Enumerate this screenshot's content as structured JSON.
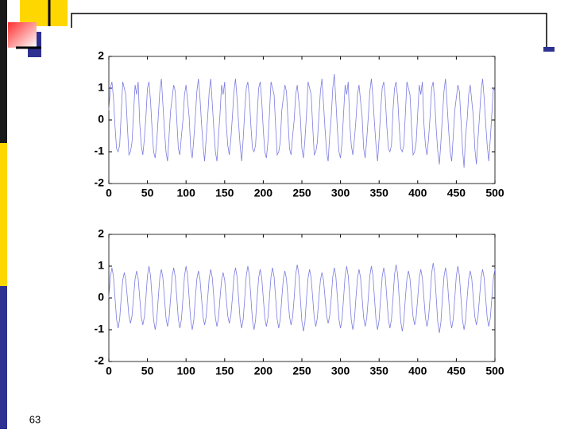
{
  "page_number": "63",
  "chart_data": [
    {
      "type": "line",
      "color": "#7c7ce0",
      "xlim": [
        0,
        500
      ],
      "ylim": [
        -2,
        2
      ],
      "xticks": [
        0,
        50,
        100,
        150,
        200,
        250,
        300,
        350,
        400,
        450,
        500
      ],
      "yticks": [
        -2,
        -1,
        0,
        1,
        2
      ],
      "x": [
        0,
        2,
        4,
        6,
        8,
        10,
        12,
        14,
        16,
        18,
        20,
        22,
        24,
        26,
        28,
        30,
        32,
        34,
        36,
        38,
        40,
        42,
        44,
        46,
        48,
        50,
        52,
        54,
        56,
        58,
        60,
        62,
        64,
        66,
        68,
        70,
        72,
        74,
        76,
        78,
        80,
        82,
        84,
        86,
        88,
        90,
        92,
        94,
        96,
        98,
        100,
        102,
        104,
        106,
        108,
        110,
        112,
        114,
        116,
        118,
        120,
        122,
        124,
        126,
        128,
        130,
        132,
        134,
        136,
        138,
        140,
        142,
        144,
        146,
        148,
        150,
        152,
        154,
        156,
        158,
        160,
        162,
        164,
        166,
        168,
        170,
        172,
        174,
        176,
        178,
        180,
        182,
        184,
        186,
        188,
        190,
        192,
        194,
        196,
        198,
        200,
        202,
        204,
        206,
        208,
        210,
        212,
        214,
        216,
        218,
        220,
        222,
        224,
        226,
        228,
        230,
        232,
        234,
        236,
        238,
        240,
        242,
        244,
        246,
        248,
        250,
        252,
        254,
        256,
        258,
        260,
        262,
        264,
        266,
        268,
        270,
        272,
        274,
        276,
        278,
        280,
        282,
        284,
        286,
        288,
        290,
        292,
        294,
        296,
        298,
        300,
        302,
        304,
        306,
        308,
        310,
        312,
        314,
        316,
        318,
        320,
        322,
        324,
        326,
        328,
        330,
        332,
        334,
        336,
        338,
        340,
        342,
        344,
        346,
        348,
        350,
        352,
        354,
        356,
        358,
        360,
        362,
        364,
        366,
        368,
        370,
        372,
        374,
        376,
        378,
        380,
        382,
        384,
        386,
        388,
        390,
        392,
        394,
        396,
        398,
        400,
        402,
        404,
        406,
        408,
        410,
        412,
        414,
        416,
        418,
        420,
        422,
        424,
        426,
        428,
        430,
        432,
        434,
        436,
        438,
        440,
        442,
        444,
        446,
        448,
        450,
        452,
        454,
        456,
        458,
        460,
        462,
        464,
        466,
        468,
        470,
        472,
        474,
        476,
        478,
        480,
        482,
        484,
        486,
        488,
        490,
        492,
        494,
        496,
        498,
        500
      ],
      "values": [
        0.3,
        1.0,
        1.2,
        0.7,
        -0.2,
        -0.9,
        -1.0,
        -0.8,
        0.2,
        1.2,
        1.0,
        0.8,
        -0.2,
        -1.1,
        -1.0,
        -0.7,
        0.2,
        1.1,
        0.8,
        1.2,
        -0.1,
        -0.8,
        -1.1,
        -0.6,
        0.1,
        1.0,
        1.2,
        0.6,
        -0.3,
        -1.0,
        -1.2,
        -0.7,
        0.1,
        0.9,
        1.3,
        0.5,
        -0.3,
        -1.0,
        -1.3,
        -0.5,
        0.3,
        0.7,
        1.1,
        0.9,
        0.0,
        -0.9,
        -1.1,
        -0.5,
        0.0,
        0.8,
        1.1,
        0.6,
        0.1,
        -0.9,
        -1.2,
        -0.6,
        0.1,
        0.9,
        1.3,
        0.7,
        -0.1,
        -0.8,
        -1.3,
        -0.6,
        0.1,
        0.9,
        1.3,
        0.5,
        -0.3,
        -1.0,
        -1.3,
        -0.5,
        0.2,
        1.1,
        0.8,
        1.2,
        -0.1,
        -0.8,
        -1.1,
        -0.6,
        0.1,
        0.9,
        1.3,
        0.7,
        -0.1,
        -0.8,
        -1.3,
        -0.6,
        0.3,
        1.0,
        1.2,
        0.7,
        -0.2,
        -0.9,
        -1.0,
        -0.8,
        0.1,
        1.0,
        1.2,
        0.6,
        -0.3,
        -1.0,
        -1.2,
        -0.7,
        0.2,
        1.2,
        1.0,
        0.8,
        -0.2,
        -1.1,
        -1.0,
        -0.7,
        0.3,
        0.7,
        1.1,
        0.9,
        0.0,
        -0.9,
        -1.1,
        -0.5,
        0.0,
        0.8,
        1.1,
        0.6,
        0.1,
        -0.9,
        -1.2,
        -0.6,
        0.2,
        1.2,
        1.0,
        0.8,
        -0.2,
        -1.1,
        -1.0,
        -0.7,
        0.1,
        0.9,
        1.3,
        0.5,
        -0.3,
        -1.0,
        -1.3,
        -0.5,
        0.1,
        1.0,
        1.45,
        0.6,
        -0.3,
        -1.0,
        -1.2,
        -0.7,
        0.2,
        1.1,
        0.8,
        1.2,
        -0.1,
        -0.8,
        -1.1,
        -0.6,
        0.0,
        0.8,
        1.1,
        0.6,
        0.1,
        -0.9,
        -1.2,
        -0.6,
        0.1,
        0.9,
        1.3,
        0.7,
        -0.1,
        -0.8,
        -1.3,
        -0.6,
        0.3,
        1.0,
        1.2,
        0.7,
        -0.2,
        -0.9,
        -1.0,
        -0.8,
        0.3,
        1.0,
        1.2,
        0.7,
        -0.2,
        -0.9,
        -1.0,
        -0.8,
        0.2,
        1.2,
        1.0,
        0.8,
        -0.2,
        -1.1,
        -1.0,
        -0.7,
        0.2,
        1.1,
        0.8,
        1.2,
        -0.1,
        -0.8,
        -1.1,
        -0.6,
        0.1,
        1.0,
        1.2,
        0.6,
        -0.3,
        -1.0,
        -1.4,
        -0.7,
        0.1,
        0.9,
        1.3,
        0.5,
        -0.3,
        -1.0,
        -1.3,
        -0.5,
        0.3,
        0.7,
        1.1,
        0.9,
        0.0,
        -0.9,
        -1.5,
        -0.5,
        0.0,
        0.8,
        1.1,
        0.6,
        0.1,
        -0.9,
        -1.4,
        -0.6,
        0.1,
        0.9,
        1.3,
        0.7,
        -0.1,
        -0.8,
        -1.3,
        -0.6,
        0.2,
        1.0,
        0.9
      ]
    },
    {
      "type": "line",
      "color": "#7c7ce0",
      "xlim": [
        0,
        500
      ],
      "ylim": [
        -2,
        2
      ],
      "xticks": [
        0,
        50,
        100,
        150,
        200,
        250,
        300,
        350,
        400,
        450,
        500
      ],
      "yticks": [
        -2,
        -1,
        0,
        1,
        2
      ],
      "x": [
        0,
        2,
        4,
        6,
        8,
        10,
        12,
        14,
        16,
        18,
        20,
        22,
        24,
        26,
        28,
        30,
        32,
        34,
        36,
        38,
        40,
        42,
        44,
        46,
        48,
        50,
        52,
        54,
        56,
        58,
        60,
        62,
        64,
        66,
        68,
        70,
        72,
        74,
        76,
        78,
        80,
        82,
        84,
        86,
        88,
        90,
        92,
        94,
        96,
        98,
        100,
        102,
        104,
        106,
        108,
        110,
        112,
        114,
        116,
        118,
        120,
        122,
        124,
        126,
        128,
        130,
        132,
        134,
        136,
        138,
        140,
        142,
        144,
        146,
        148,
        150,
        152,
        154,
        156,
        158,
        160,
        162,
        164,
        166,
        168,
        170,
        172,
        174,
        176,
        178,
        180,
        182,
        184,
        186,
        188,
        190,
        192,
        194,
        196,
        198,
        200,
        202,
        204,
        206,
        208,
        210,
        212,
        214,
        216,
        218,
        220,
        222,
        224,
        226,
        228,
        230,
        232,
        234,
        236,
        238,
        240,
        242,
        244,
        246,
        248,
        250,
        252,
        254,
        256,
        258,
        260,
        262,
        264,
        266,
        268,
        270,
        272,
        274,
        276,
        278,
        280,
        282,
        284,
        286,
        288,
        290,
        292,
        294,
        296,
        298,
        300,
        302,
        304,
        306,
        308,
        310,
        312,
        314,
        316,
        318,
        320,
        322,
        324,
        326,
        328,
        330,
        332,
        334,
        336,
        338,
        340,
        342,
        344,
        346,
        348,
        350,
        352,
        354,
        356,
        358,
        360,
        362,
        364,
        366,
        368,
        370,
        372,
        374,
        376,
        378,
        380,
        382,
        384,
        386,
        388,
        390,
        392,
        394,
        396,
        398,
        400,
        402,
        404,
        406,
        408,
        410,
        412,
        414,
        416,
        418,
        420,
        422,
        424,
        426,
        428,
        430,
        432,
        434,
        436,
        438,
        440,
        442,
        444,
        446,
        448,
        450,
        452,
        454,
        456,
        458,
        460,
        462,
        464,
        466,
        468,
        470,
        472,
        474,
        476,
        478,
        480,
        482,
        484,
        486,
        488,
        490,
        492,
        494,
        496,
        498,
        500
      ],
      "values": [
        0,
        0.67,
        0.95,
        0.67,
        0,
        -0.67,
        -0.95,
        -0.67,
        0,
        0.56,
        0.8,
        0.56,
        0,
        -0.56,
        -0.8,
        -0.56,
        0,
        0.6,
        0.85,
        0.6,
        0,
        -0.6,
        -0.85,
        -0.6,
        0,
        0.7,
        1,
        0.7,
        0,
        -0.7,
        -1,
        -0.7,
        0,
        0.63,
        0.9,
        0.63,
        0,
        -0.63,
        -0.9,
        -0.63,
        0,
        0.67,
        0.95,
        0.67,
        0,
        -0.67,
        -0.95,
        -0.67,
        0,
        0.7,
        1,
        0.7,
        0,
        -0.7,
        -1,
        -0.7,
        0,
        0.6,
        0.85,
        0.6,
        0,
        -0.6,
        -0.85,
        -0.6,
        0,
        0.63,
        0.9,
        0.63,
        0,
        -0.63,
        -0.9,
        -0.63,
        0,
        0.56,
        0.8,
        0.56,
        0,
        -0.56,
        -0.8,
        -0.56,
        0,
        0.67,
        0.95,
        0.67,
        0,
        -0.67,
        -0.95,
        -0.67,
        0,
        0.7,
        1,
        0.7,
        0,
        -0.7,
        -1,
        -0.7,
        0,
        0.63,
        0.9,
        0.63,
        0,
        -0.63,
        -0.9,
        -0.63,
        0,
        0.67,
        0.95,
        0.67,
        0,
        -0.67,
        -0.95,
        -0.67,
        0,
        0.6,
        0.85,
        0.6,
        0,
        -0.6,
        -0.85,
        -0.6,
        0,
        0.74,
        1.05,
        0.74,
        0,
        -0.74,
        -1.05,
        -0.74,
        0,
        0.63,
        0.9,
        0.63,
        0,
        -0.63,
        -0.9,
        -0.63,
        0,
        0.56,
        0.8,
        0.56,
        0,
        -0.56,
        -0.8,
        -0.56,
        0,
        0.67,
        0.95,
        0.67,
        0,
        -0.67,
        -0.95,
        -0.67,
        0,
        0.7,
        1,
        0.7,
        0,
        -0.7,
        -1,
        -0.7,
        0,
        0.63,
        0.9,
        0.63,
        0,
        -0.63,
        -0.9,
        -0.63,
        0,
        0.7,
        1,
        0.7,
        0,
        -0.7,
        -1,
        -0.7,
        0,
        0.67,
        0.95,
        0.67,
        0,
        -0.67,
        -0.95,
        -0.67,
        0,
        0.74,
        1.05,
        0.74,
        0,
        -0.74,
        -1.05,
        -0.74,
        0,
        0.6,
        0.85,
        0.6,
        0,
        -0.6,
        -0.85,
        -0.6,
        0,
        0.63,
        0.9,
        0.63,
        0,
        -0.63,
        -0.9,
        -0.63,
        0,
        0.77,
        1.1,
        0.77,
        0,
        -0.77,
        -1.1,
        -0.77,
        0,
        0.67,
        0.95,
        0.67,
        0,
        -0.67,
        -0.95,
        -0.67,
        0,
        0.7,
        1,
        0.7,
        0,
        -0.7,
        -1,
        -0.7,
        0,
        0.6,
        0.85,
        0.6,
        0,
        -0.6,
        -0.85,
        -0.6,
        0,
        0.63,
        0.9,
        0.63,
        0,
        -0.63,
        -0.9,
        -0.63,
        0,
        0.63,
        0.9
      ]
    }
  ]
}
